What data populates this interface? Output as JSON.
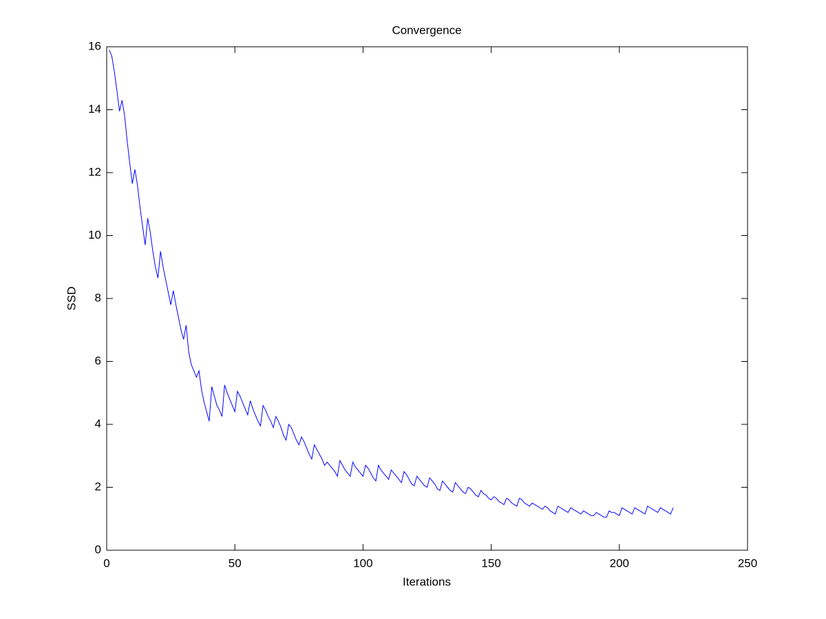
{
  "chart_data": {
    "type": "line",
    "title": "Convergence",
    "x_label": "Iterations",
    "y_label": "SSD",
    "color": "#0000ff",
    "xlim": [
      0,
      250
    ],
    "xticks": [
      0,
      50,
      100,
      150,
      200,
      250
    ],
    "ylim": [
      0,
      16
    ],
    "yticks": [
      0,
      2,
      4,
      6,
      8,
      10,
      12,
      14,
      16
    ],
    "x": [
      1,
      2,
      3,
      4,
      5,
      6,
      7,
      8,
      9,
      10,
      11,
      12,
      13,
      14,
      15,
      16,
      17,
      18,
      19,
      20,
      21,
      22,
      23,
      24,
      25,
      26,
      27,
      28,
      29,
      30,
      31,
      32,
      33,
      34,
      35,
      36,
      37,
      38,
      39,
      40,
      41,
      42,
      43,
      44,
      45,
      46,
      47,
      48,
      49,
      50,
      51,
      52,
      53,
      54,
      55,
      56,
      57,
      58,
      59,
      60,
      61,
      62,
      63,
      64,
      65,
      66,
      67,
      68,
      69,
      70,
      71,
      72,
      73,
      74,
      75,
      76,
      77,
      78,
      79,
      80,
      81,
      82,
      83,
      84,
      85,
      86,
      87,
      88,
      89,
      90,
      91,
      92,
      93,
      94,
      95,
      96,
      97,
      98,
      99,
      100,
      101,
      102,
      103,
      104,
      105,
      106,
      107,
      108,
      109,
      110,
      111,
      112,
      113,
      114,
      115,
      116,
      117,
      118,
      119,
      120,
      121,
      122,
      123,
      124,
      125,
      126,
      127,
      128,
      129,
      130,
      131,
      132,
      133,
      134,
      135,
      136,
      137,
      138,
      139,
      140,
      141,
      142,
      143,
      144,
      145,
      146,
      147,
      148,
      149,
      150,
      151,
      152,
      153,
      154,
      155,
      156,
      157,
      158,
      159,
      160,
      161,
      162,
      163,
      164,
      165,
      166,
      167,
      168,
      169,
      170,
      171,
      172,
      173,
      174,
      175,
      176,
      177,
      178,
      179,
      180,
      181,
      182,
      183,
      184,
      185,
      186,
      187,
      188,
      189,
      190,
      191,
      192,
      193,
      194,
      195,
      196,
      197,
      198,
      199,
      200,
      201,
      202,
      203,
      204,
      205,
      206,
      207,
      208,
      209,
      210,
      211,
      212,
      213,
      214,
      215,
      216,
      217,
      218,
      219,
      220,
      221
    ],
    "values": [
      15.9,
      15.7,
      15.2,
      14.6,
      13.95,
      14.3,
      13.8,
      13.0,
      12.3,
      11.65,
      12.1,
      11.6,
      10.9,
      10.3,
      9.7,
      10.55,
      10.1,
      9.5,
      9.0,
      8.65,
      9.5,
      9.0,
      8.6,
      8.2,
      7.8,
      8.25,
      7.8,
      7.4,
      7.0,
      6.7,
      7.15,
      6.3,
      5.9,
      5.7,
      5.5,
      5.7,
      5.1,
      4.7,
      4.4,
      4.1,
      5.2,
      4.9,
      4.6,
      4.45,
      4.25,
      5.25,
      5.0,
      4.8,
      4.6,
      4.4,
      5.05,
      4.9,
      4.7,
      4.5,
      4.3,
      4.75,
      4.5,
      4.3,
      4.1,
      3.95,
      4.6,
      4.45,
      4.25,
      4.1,
      3.9,
      4.25,
      4.1,
      3.9,
      3.65,
      3.5,
      4.0,
      3.9,
      3.7,
      3.5,
      3.35,
      3.6,
      3.45,
      3.25,
      3.05,
      2.9,
      3.35,
      3.2,
      3.05,
      2.9,
      2.7,
      2.8,
      2.7,
      2.6,
      2.5,
      2.35,
      2.85,
      2.7,
      2.55,
      2.45,
      2.35,
      2.8,
      2.65,
      2.55,
      2.45,
      2.35,
      2.7,
      2.6,
      2.45,
      2.3,
      2.2,
      2.7,
      2.55,
      2.45,
      2.35,
      2.25,
      2.55,
      2.45,
      2.35,
      2.25,
      2.15,
      2.5,
      2.4,
      2.25,
      2.1,
      2.05,
      2.35,
      2.25,
      2.15,
      2.05,
      2.0,
      2.3,
      2.2,
      2.1,
      1.95,
      1.9,
      2.2,
      2.1,
      2.0,
      1.9,
      1.85,
      2.15,
      2.05,
      1.95,
      1.85,
      1.8,
      2.0,
      1.95,
      1.85,
      1.75,
      1.7,
      1.9,
      1.8,
      1.75,
      1.65,
      1.6,
      1.7,
      1.65,
      1.55,
      1.5,
      1.45,
      1.65,
      1.6,
      1.5,
      1.45,
      1.4,
      1.65,
      1.6,
      1.5,
      1.45,
      1.4,
      1.5,
      1.45,
      1.4,
      1.35,
      1.3,
      1.4,
      1.35,
      1.25,
      1.2,
      1.15,
      1.4,
      1.35,
      1.3,
      1.25,
      1.2,
      1.35,
      1.3,
      1.25,
      1.2,
      1.15,
      1.25,
      1.2,
      1.15,
      1.1,
      1.1,
      1.2,
      1.15,
      1.1,
      1.05,
      1.05,
      1.25,
      1.2,
      1.2,
      1.15,
      1.1,
      1.35,
      1.3,
      1.25,
      1.2,
      1.15,
      1.35,
      1.3,
      1.25,
      1.2,
      1.15,
      1.4,
      1.35,
      1.3,
      1.25,
      1.2,
      1.35,
      1.3,
      1.25,
      1.2,
      1.15,
      1.35
    ]
  }
}
